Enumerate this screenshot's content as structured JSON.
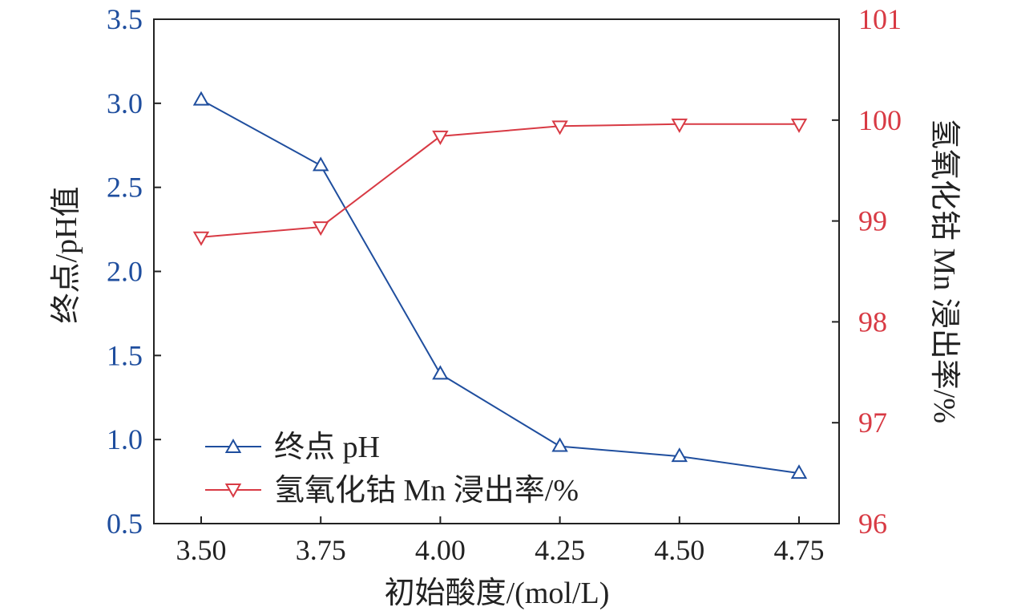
{
  "colors": {
    "ph": "#1f4e9e",
    "mn": "#d83a44",
    "axis": "#222222"
  },
  "chart_data": {
    "type": "line",
    "x": [
      3.5,
      3.75,
      4.0,
      4.25,
      4.5,
      4.75
    ],
    "x_tick_labels": [
      "3.50",
      "3.75",
      "4.00",
      "4.25",
      "4.50",
      "4.75"
    ],
    "xlabel": "初始酸度/(mol/L)",
    "ylabel_left": "终点/pH值",
    "ylabel_right": "氢氧化钴 Mn 浸出率/%",
    "ylim_left": [
      0.5,
      3.5
    ],
    "ylim_right": [
      96,
      101
    ],
    "y_left_tick_labels": [
      "0.5",
      "1.0",
      "1.5",
      "2.0",
      "2.5",
      "3.0",
      "3.5"
    ],
    "y_right_tick_labels": [
      "96",
      "97",
      "98",
      "99",
      "100",
      "101"
    ],
    "series": [
      {
        "name": "终点 pH",
        "axis": "left",
        "marker": "triangle-up",
        "color": "#1f4e9e",
        "values": [
          3.02,
          2.63,
          1.39,
          0.96,
          0.9,
          0.8
        ]
      },
      {
        "name": "氢氧化钴 Mn 浸出率/%",
        "axis": "right",
        "marker": "triangle-down",
        "color": "#d83a44",
        "values": [
          98.84,
          98.94,
          99.84,
          99.94,
          99.96,
          99.96
        ]
      }
    ],
    "legend": "bottom-left",
    "grid": false
  }
}
